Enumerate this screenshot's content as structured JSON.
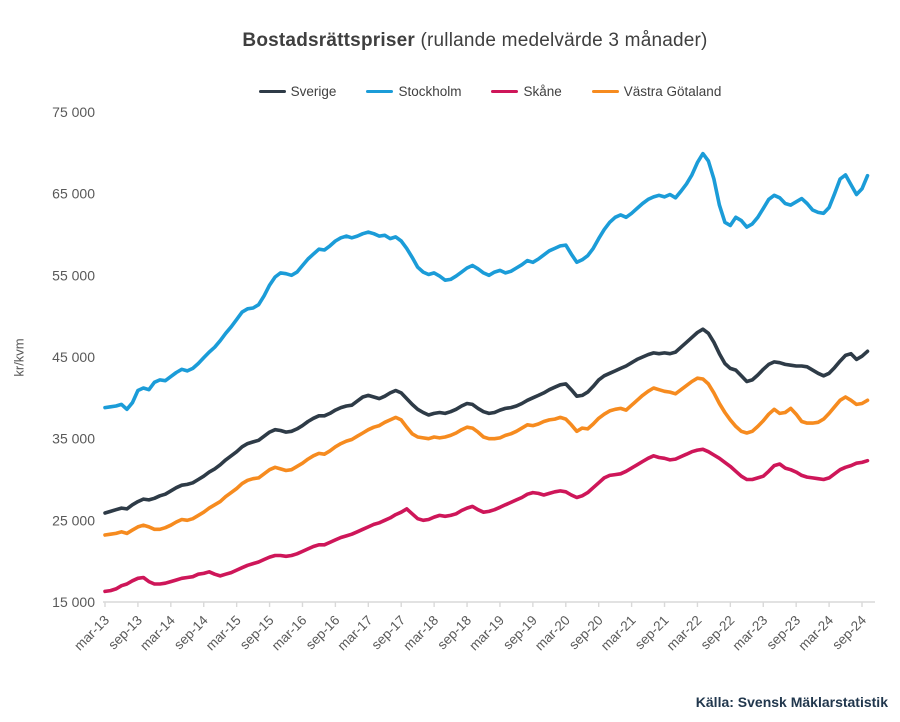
{
  "header": {
    "title_bold": "Bostadsrättspriser",
    "title_rest": "(rullande medelvärde 3 månader)"
  },
  "source": {
    "label": "Källa: Svensk Mäklarstatistik"
  },
  "chart_data": {
    "type": "line",
    "title": "Bostadsrättspriser (rullande medelvärde 3 månader)",
    "ylabel": "kr/kvm",
    "unit": "kr/kvm",
    "ylim": [
      15000,
      75000
    ],
    "ytick_labels": [
      "15 000",
      "25 000",
      "35 000",
      "45 000",
      "55 000",
      "65 000",
      "75 000"
    ],
    "grid": false,
    "legend_position": "top",
    "x_tick_every": 6,
    "x_tick_labels": [
      "mar-13",
      "sep-13",
      "mar-14",
      "sep-14",
      "mar-15",
      "sep-15",
      "mar-16",
      "sep-16",
      "mar-17",
      "sep-17",
      "mar-18",
      "sep-18",
      "mar-19",
      "sep-19",
      "mar-20",
      "sep-20",
      "mar-21",
      "sep-21",
      "mar-22",
      "sep-22",
      "mar-23",
      "sep-23",
      "mar-24",
      "sep-24"
    ],
    "x": [
      "mar-13",
      "apr-13",
      "maj-13",
      "jun-13",
      "jul-13",
      "aug-13",
      "sep-13",
      "okt-13",
      "nov-13",
      "dec-13",
      "jan-14",
      "feb-14",
      "mar-14",
      "apr-14",
      "maj-14",
      "jun-14",
      "jul-14",
      "aug-14",
      "sep-14",
      "okt-14",
      "nov-14",
      "dec-14",
      "jan-15",
      "feb-15",
      "mar-15",
      "apr-15",
      "maj-15",
      "jun-15",
      "jul-15",
      "aug-15",
      "sep-15",
      "okt-15",
      "nov-15",
      "dec-15",
      "jan-16",
      "feb-16",
      "mar-16",
      "apr-16",
      "maj-16",
      "jun-16",
      "jul-16",
      "aug-16",
      "sep-16",
      "okt-16",
      "nov-16",
      "dec-16",
      "jan-17",
      "feb-17",
      "mar-17",
      "apr-17",
      "maj-17",
      "jun-17",
      "jul-17",
      "aug-17",
      "sep-17",
      "okt-17",
      "nov-17",
      "dec-17",
      "jan-18",
      "feb-18",
      "mar-18",
      "apr-18",
      "maj-18",
      "jun-18",
      "jul-18",
      "aug-18",
      "sep-18",
      "okt-18",
      "nov-18",
      "dec-18",
      "jan-19",
      "feb-19",
      "mar-19",
      "apr-19",
      "maj-19",
      "jun-19",
      "jul-19",
      "aug-19",
      "sep-19",
      "okt-19",
      "nov-19",
      "dec-19",
      "jan-20",
      "feb-20",
      "mar-20",
      "apr-20",
      "maj-20",
      "jun-20",
      "jul-20",
      "aug-20",
      "sep-20",
      "okt-20",
      "nov-20",
      "dec-20",
      "jan-21",
      "feb-21",
      "mar-21",
      "apr-21",
      "maj-21",
      "jun-21",
      "jul-21",
      "aug-21",
      "sep-21",
      "okt-21",
      "nov-21",
      "dec-21",
      "jan-22",
      "feb-22",
      "mar-22",
      "apr-22",
      "maj-22",
      "jun-22",
      "jul-22",
      "aug-22",
      "sep-22",
      "okt-22",
      "nov-22",
      "dec-22",
      "jan-23",
      "feb-23",
      "mar-23",
      "apr-23",
      "maj-23",
      "jun-23",
      "jul-23",
      "aug-23",
      "sep-23",
      "okt-23",
      "nov-23",
      "dec-23",
      "jan-24",
      "feb-24",
      "mar-24",
      "apr-24",
      "maj-24",
      "jun-24",
      "jul-24",
      "aug-24",
      "sep-24",
      "okt-24"
    ],
    "series": [
      {
        "name": "Sverige",
        "color": "#2e3b47",
        "values": [
          25900,
          26100,
          26300,
          26500,
          26400,
          26900,
          27300,
          27600,
          27500,
          27700,
          28000,
          28200,
          28600,
          29000,
          29300,
          29400,
          29600,
          30000,
          30400,
          30900,
          31300,
          31800,
          32400,
          32900,
          33400,
          34000,
          34400,
          34600,
          34800,
          35300,
          35800,
          36100,
          36000,
          35800,
          35900,
          36200,
          36600,
          37100,
          37500,
          37800,
          37800,
          38100,
          38500,
          38800,
          39000,
          39100,
          39600,
          40100,
          40300,
          40100,
          39900,
          40200,
          40600,
          40900,
          40600,
          39900,
          39200,
          38600,
          38200,
          37900,
          38100,
          38200,
          38100,
          38300,
          38600,
          39000,
          39300,
          39200,
          38700,
          38300,
          38100,
          38200,
          38500,
          38700,
          38800,
          39000,
          39300,
          39700,
          40000,
          40300,
          40600,
          41000,
          41300,
          41600,
          41700,
          41000,
          40200,
          40300,
          40700,
          41400,
          42200,
          42700,
          43000,
          43300,
          43600,
          43900,
          44300,
          44700,
          45000,
          45300,
          45500,
          45400,
          45500,
          45400,
          45600,
          46200,
          46800,
          47400,
          48000,
          48400,
          47900,
          46800,
          45400,
          44200,
          43600,
          43400,
          42700,
          42000,
          42200,
          42800,
          43500,
          44100,
          44400,
          44300,
          44100,
          44000,
          43900,
          43900,
          43800,
          43400,
          43000,
          42700,
          43000,
          43700,
          44500,
          45200,
          45400,
          44700,
          45100,
          45700
        ]
      },
      {
        "name": "Stockholm",
        "color": "#1b9cd8",
        "values": [
          38800,
          38900,
          39000,
          39200,
          38600,
          39400,
          40900,
          41200,
          41000,
          41900,
          42200,
          42100,
          42600,
          43100,
          43500,
          43300,
          43600,
          44200,
          44900,
          45600,
          46200,
          47000,
          47900,
          48700,
          49600,
          50500,
          50900,
          51000,
          51400,
          52500,
          53800,
          54800,
          55300,
          55200,
          55000,
          55400,
          56200,
          57000,
          57600,
          58200,
          58100,
          58600,
          59200,
          59600,
          59800,
          59600,
          59800,
          60100,
          60300,
          60100,
          59800,
          59900,
          59500,
          59700,
          59200,
          58300,
          57200,
          56000,
          55400,
          55100,
          55300,
          54900,
          54400,
          54500,
          54900,
          55400,
          55900,
          56200,
          55800,
          55300,
          55000,
          55400,
          55600,
          55300,
          55500,
          55900,
          56300,
          56800,
          56600,
          57000,
          57500,
          58000,
          58300,
          58600,
          58700,
          57600,
          56600,
          56900,
          57400,
          58300,
          59500,
          60600,
          61500,
          62100,
          62400,
          62100,
          62600,
          63200,
          63800,
          64300,
          64600,
          64800,
          64600,
          64900,
          64500,
          65300,
          66200,
          67300,
          68800,
          69900,
          69000,
          66800,
          63600,
          61500,
          61100,
          62100,
          61700,
          60900,
          61300,
          62100,
          63200,
          64300,
          64800,
          64500,
          63800,
          63600,
          64000,
          64400,
          63800,
          63000,
          62700,
          62600,
          63300,
          65000,
          66800,
          67300,
          66100,
          64900,
          65600,
          67200
        ]
      },
      {
        "name": "Skåne",
        "color": "#ce1659",
        "values": [
          16300,
          16400,
          16600,
          17000,
          17200,
          17600,
          17900,
          18000,
          17500,
          17200,
          17200,
          17300,
          17500,
          17700,
          17900,
          18000,
          18100,
          18400,
          18500,
          18700,
          18400,
          18200,
          18400,
          18600,
          18900,
          19200,
          19500,
          19700,
          19900,
          20200,
          20500,
          20700,
          20700,
          20600,
          20700,
          20900,
          21200,
          21500,
          21800,
          22000,
          22000,
          22300,
          22600,
          22900,
          23100,
          23300,
          23600,
          23900,
          24200,
          24500,
          24700,
          25000,
          25300,
          25700,
          26000,
          26400,
          25800,
          25200,
          25000,
          25100,
          25400,
          25600,
          25500,
          25600,
          25800,
          26200,
          26500,
          26700,
          26300,
          26000,
          26100,
          26300,
          26600,
          26900,
          27200,
          27500,
          27800,
          28200,
          28400,
          28300,
          28100,
          28300,
          28500,
          28600,
          28500,
          28100,
          27800,
          28000,
          28400,
          29000,
          29600,
          30200,
          30500,
          30600,
          30700,
          31000,
          31400,
          31800,
          32200,
          32600,
          32900,
          32700,
          32600,
          32400,
          32500,
          32800,
          33100,
          33400,
          33600,
          33700,
          33400,
          33000,
          32600,
          32100,
          31600,
          31000,
          30400,
          30000,
          30000,
          30200,
          30400,
          31000,
          31700,
          31900,
          31400,
          31200,
          30900,
          30500,
          30300,
          30200,
          30100,
          30000,
          30200,
          30700,
          31200,
          31500,
          31700,
          32000,
          32100,
          32300
        ]
      },
      {
        "name": "Västra Götaland",
        "color": "#f68b1f",
        "values": [
          23200,
          23300,
          23400,
          23600,
          23400,
          23800,
          24200,
          24400,
          24200,
          23900,
          23900,
          24100,
          24400,
          24800,
          25100,
          25000,
          25200,
          25600,
          26000,
          26500,
          26900,
          27300,
          27900,
          28400,
          28900,
          29500,
          29900,
          30100,
          30200,
          30700,
          31200,
          31500,
          31300,
          31100,
          31200,
          31600,
          32000,
          32500,
          32900,
          33200,
          33100,
          33500,
          34000,
          34400,
          34700,
          34900,
          35300,
          35700,
          36100,
          36400,
          36600,
          37000,
          37300,
          37600,
          37300,
          36400,
          35600,
          35200,
          35100,
          35000,
          35200,
          35100,
          35200,
          35400,
          35700,
          36100,
          36400,
          36300,
          35800,
          35200,
          35000,
          35000,
          35100,
          35400,
          35600,
          35900,
          36300,
          36700,
          36600,
          36800,
          37100,
          37300,
          37400,
          37600,
          37400,
          36700,
          35900,
          36300,
          36200,
          36800,
          37500,
          38000,
          38400,
          38600,
          38700,
          38500,
          39100,
          39700,
          40300,
          40800,
          41200,
          41000,
          40800,
          40700,
          40500,
          41000,
          41500,
          42000,
          42400,
          42300,
          41700,
          40600,
          39300,
          38200,
          37300,
          36500,
          35900,
          35700,
          35900,
          36500,
          37200,
          38000,
          38600,
          38100,
          38200,
          38700,
          38000,
          37100,
          36900,
          36900,
          37000,
          37400,
          38100,
          38900,
          39700,
          40100,
          39700,
          39200,
          39300,
          39700
        ]
      }
    ],
    "axis_color": "#d9d9d9",
    "tick_label_color": "#595959"
  }
}
